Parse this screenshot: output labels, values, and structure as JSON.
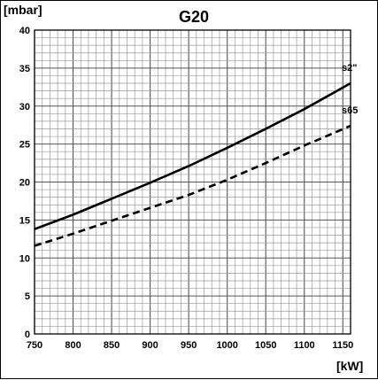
{
  "chart_data": {
    "type": "line",
    "title": "G20",
    "ylabel": "[mbar]",
    "xlabel": "[kW]",
    "xlim": [
      750,
      1160
    ],
    "ylim": [
      0,
      40
    ],
    "x_ticks": [
      750,
      800,
      850,
      900,
      950,
      1000,
      1050,
      1100,
      1150
    ],
    "y_ticks": [
      0,
      5,
      10,
      15,
      20,
      25,
      30,
      35,
      40
    ],
    "grid": true,
    "series": [
      {
        "name": "s2\"",
        "style": "solid",
        "color": "#000000",
        "x": [
          750,
          800,
          850,
          900,
          950,
          1000,
          1050,
          1100,
          1160
        ],
        "y": [
          13.8,
          15.7,
          17.8,
          19.9,
          22.1,
          24.5,
          27.0,
          29.6,
          33.0
        ]
      },
      {
        "name": "s65",
        "style": "dashed",
        "color": "#000000",
        "x": [
          750,
          800,
          850,
          900,
          950,
          1000,
          1050,
          1100,
          1160
        ],
        "y": [
          11.6,
          13.2,
          14.9,
          16.6,
          18.3,
          20.3,
          22.5,
          24.8,
          27.4
        ]
      }
    ]
  }
}
